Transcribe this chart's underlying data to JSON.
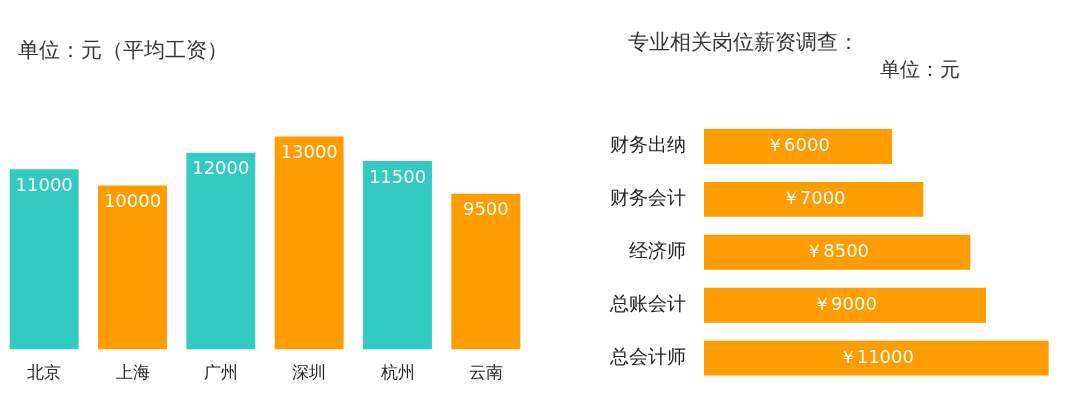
{
  "chart_data": [
    {
      "type": "bar",
      "title": "单位：元（平均工资）",
      "categories": [
        "北京",
        "上海",
        "广州",
        "深圳",
        "杭州",
        "云南"
      ],
      "values": [
        11000,
        10000,
        12000,
        13000,
        11500,
        9500
      ],
      "colors": [
        "#33cbc1",
        "#ff9c00",
        "#33cbc1",
        "#ff9c00",
        "#33cbc1",
        "#ff9c00"
      ],
      "data_labels": true,
      "grid": false,
      "legend": false
    },
    {
      "type": "bar",
      "orientation": "horizontal",
      "title": "专业相关岗位薪资调查：",
      "subtitle": "单位：元",
      "categories": [
        "财务出纳",
        "财务会计",
        "经济师",
        "总账会计",
        "总会计师"
      ],
      "values": [
        6000,
        7000,
        8500,
        9000,
        11000
      ],
      "color": "#ff9c00",
      "value_labels": [
        "￥6000",
        "￥7000",
        "￥8500",
        "￥9000",
        "￥11000"
      ],
      "grid": false,
      "legend": false
    }
  ]
}
